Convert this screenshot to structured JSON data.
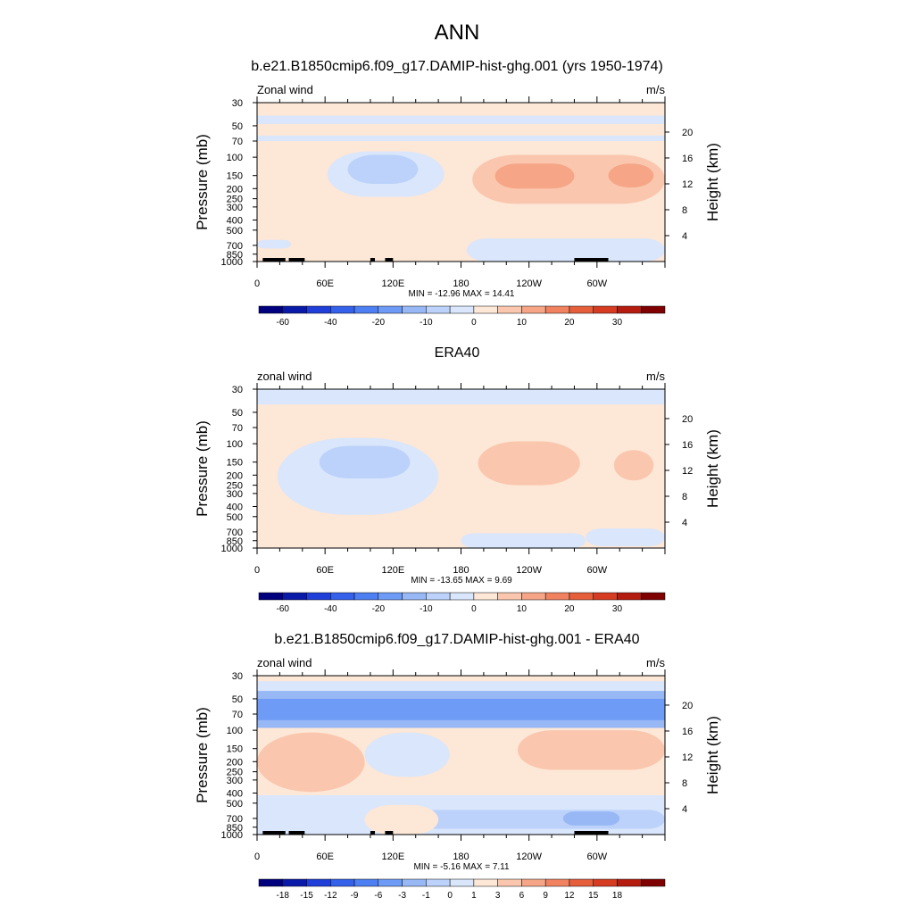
{
  "page_title": "ANN",
  "chart_data": [
    {
      "type": "heatmap",
      "title": "b.e21.B1850cmip6.f09_g17.DAMIP-hist-ghg.001 (yrs 1950-1974)",
      "variable_label": "Zonal wind",
      "units_label": "m/s",
      "xlabel": "",
      "ylabel_left": "Pressure (mb)",
      "ylabel_right": "Height (km)",
      "x_ticks": [
        "0",
        "60E",
        "120E",
        "180",
        "120W",
        "60W"
      ],
      "x_range_deg": [
        0,
        360
      ],
      "y_ticks_pressure": [
        "30",
        "50",
        "70",
        "100",
        "150",
        "200",
        "250",
        "300",
        "400",
        "500",
        "700",
        "850",
        "1000"
      ],
      "y_ticks_height": [
        "20",
        "16",
        "12",
        "8",
        "4"
      ],
      "y_scale": "log",
      "stats": "MIN = -12.96  MAX =  14.41",
      "min": -12.96,
      "max": 14.41,
      "colorbar": {
        "levels": [
          -70,
          -60,
          -50,
          -40,
          -30,
          -20,
          -15,
          -10,
          -5,
          0,
          5,
          10,
          15,
          20,
          25,
          30,
          35
        ],
        "labels": [
          "-60",
          "-40",
          "-20",
          "-10",
          "0",
          "10",
          "20",
          "30"
        ],
        "colors": [
          "#00007f",
          "#0a1aa8",
          "#1f3fd8",
          "#3460ea",
          "#4d7ff2",
          "#6e9bf6",
          "#97b8f5",
          "#bcd2fa",
          "#d9e6fb",
          "#fde7d7",
          "#fac7ae",
          "#f6a587",
          "#f08260",
          "#e65f3b",
          "#d63c21",
          "#b51c10",
          "#7f0000"
        ]
      },
      "regions": [
        {
          "shape": "band",
          "lon": [
            0,
            360
          ],
          "p": [
            48,
            40
          ],
          "level": "-5..0"
        },
        {
          "shape": "band",
          "lon": [
            0,
            360
          ],
          "p": [
            70,
            62
          ],
          "level": "-5..0"
        },
        {
          "shape": "blob",
          "lon": [
            62,
            165
          ],
          "p": [
            88,
            240
          ],
          "level": "-5..0"
        },
        {
          "shape": "blob",
          "lon": [
            80,
            142
          ],
          "p": [
            95,
            180
          ],
          "level": "-10..-5"
        },
        {
          "shape": "blob",
          "lon": [
            175,
            360
          ],
          "p": [
            85,
            390
          ],
          "level": "0..5"
        },
        {
          "shape": "blob",
          "lon": [
            190,
            360
          ],
          "p": [
            95,
            280
          ],
          "level": "5..10"
        },
        {
          "shape": "blob",
          "lon": [
            210,
            280
          ],
          "p": [
            115,
            200
          ],
          "level": "10..15"
        },
        {
          "shape": "blob",
          "lon": [
            310,
            350
          ],
          "p": [
            115,
            195
          ],
          "level": "10..15"
        },
        {
          "shape": "blob",
          "lon": [
            35,
            150
          ],
          "p": [
            480,
            1000
          ],
          "level": "0..5"
        },
        {
          "shape": "blob",
          "lon": [
            185,
            360
          ],
          "p": [
            600,
            1000
          ],
          "level": "-5..0"
        },
        {
          "shape": "blob",
          "lon": [
            0,
            30
          ],
          "p": [
            620,
            750
          ],
          "level": "-5..0"
        },
        {
          "shape": "blob",
          "lon": [
            33,
            62
          ],
          "p": [
            175,
            330
          ],
          "level": "0..5"
        }
      ]
    },
    {
      "type": "heatmap",
      "title": "ERA40",
      "variable_label": "zonal wind",
      "units_label": "m/s",
      "xlabel": "",
      "ylabel_left": "Pressure (mb)",
      "ylabel_right": "Height (km)",
      "x_ticks": [
        "0",
        "60E",
        "120E",
        "180",
        "120W",
        "60W"
      ],
      "x_range_deg": [
        0,
        360
      ],
      "y_ticks_pressure": [
        "30",
        "50",
        "70",
        "100",
        "150",
        "200",
        "250",
        "300",
        "400",
        "500",
        "700",
        "850",
        "1000"
      ],
      "y_ticks_height": [
        "20",
        "16",
        "12",
        "8",
        "4"
      ],
      "y_scale": "log",
      "stats": "MIN = -13.65  MAX =   9.69",
      "min": -13.65,
      "max": 9.69,
      "colorbar": {
        "levels": [
          -70,
          -60,
          -50,
          -40,
          -30,
          -20,
          -15,
          -10,
          -5,
          0,
          5,
          10,
          15,
          20,
          25,
          30,
          35
        ],
        "labels": [
          "-60",
          "-40",
          "-20",
          "-10",
          "0",
          "10",
          "20",
          "30"
        ],
        "colors": [
          "#00007f",
          "#0a1aa8",
          "#1f3fd8",
          "#3460ea",
          "#4d7ff2",
          "#6e9bf6",
          "#97b8f5",
          "#bcd2fa",
          "#d9e6fb",
          "#fde7d7",
          "#fac7ae",
          "#f6a587",
          "#f08260",
          "#e65f3b",
          "#d63c21",
          "#b51c10",
          "#7f0000"
        ]
      },
      "regions": [
        {
          "shape": "band",
          "lon": [
            0,
            360
          ],
          "p": [
            30,
            42
          ],
          "level": "-5..0"
        },
        {
          "shape": "blob",
          "lon": [
            18,
            160
          ],
          "p": [
            88,
            480
          ],
          "level": "-5..0"
        },
        {
          "shape": "blob",
          "lon": [
            55,
            135
          ],
          "p": [
            105,
            215
          ],
          "level": "-10..-5"
        },
        {
          "shape": "blob",
          "lon": [
            185,
            360
          ],
          "p": [
            78,
            440
          ],
          "level": "0..5"
        },
        {
          "shape": "blob",
          "lon": [
            195,
            285
          ],
          "p": [
            95,
            250
          ],
          "level": "5..10"
        },
        {
          "shape": "blob",
          "lon": [
            315,
            350
          ],
          "p": [
            115,
            225
          ],
          "level": "5..10"
        },
        {
          "shape": "blob",
          "lon": [
            30,
            130
          ],
          "p": [
            580,
            1000
          ],
          "level": "0..5"
        },
        {
          "shape": "blob",
          "lon": [
            180,
            290
          ],
          "p": [
            720,
            1000
          ],
          "level": "-5..0"
        },
        {
          "shape": "blob",
          "lon": [
            290,
            360
          ],
          "p": [
            650,
            960
          ],
          "level": "-5..0"
        }
      ]
    },
    {
      "type": "heatmap",
      "title": "b.e21.B1850cmip6.f09_g17.DAMIP-hist-ghg.001 - ERA40",
      "variable_label": "zonal wind",
      "units_label": "m/s",
      "xlabel": "",
      "ylabel_left": "Pressure (mb)",
      "ylabel_right": "Height (km)",
      "x_ticks": [
        "0",
        "60E",
        "120E",
        "180",
        "120W",
        "60W"
      ],
      "x_range_deg": [
        0,
        360
      ],
      "y_ticks_pressure": [
        "30",
        "50",
        "70",
        "100",
        "150",
        "200",
        "250",
        "300",
        "400",
        "500",
        "700",
        "850",
        "1000"
      ],
      "y_ticks_height": [
        "20",
        "16",
        "12",
        "8",
        "4"
      ],
      "y_scale": "log",
      "stats": "MIN =  -5.16  MAX =   7.11",
      "min": -5.16,
      "max": 7.11,
      "colorbar": {
        "levels": [
          -21,
          -18,
          -15,
          -12,
          -9,
          -6,
          -3,
          -1,
          0,
          1,
          3,
          6,
          9,
          12,
          15,
          18,
          21
        ],
        "labels": [
          "-18",
          "-15",
          "-12",
          "-9",
          "-6",
          "-3",
          "-1",
          "0",
          "1",
          "3",
          "6",
          "9",
          "12",
          "15",
          "18"
        ],
        "colors": [
          "#00007f",
          "#0a1aa8",
          "#1f3fd8",
          "#3460ea",
          "#4d7ff2",
          "#6e9bf6",
          "#97b8f5",
          "#bcd2fa",
          "#d9e6fb",
          "#fde7d7",
          "#fac7ae",
          "#f6a587",
          "#f08260",
          "#e65f3b",
          "#d63c21",
          "#b51c10",
          "#7f0000"
        ]
      },
      "regions": [
        {
          "shape": "band",
          "lon": [
            0,
            360
          ],
          "p": [
            30,
            34
          ],
          "level": "1..3"
        },
        {
          "shape": "band",
          "lon": [
            0,
            360
          ],
          "p": [
            34,
            42
          ],
          "level": "0..1"
        },
        {
          "shape": "band",
          "lon": [
            0,
            360
          ],
          "p": [
            42,
            95
          ],
          "level": "-3..-1"
        },
        {
          "shape": "band",
          "lon": [
            0,
            360
          ],
          "p": [
            50,
            80
          ],
          "level": "-6..-3"
        },
        {
          "shape": "band",
          "lon": [
            0,
            360
          ],
          "p": [
            95,
            420
          ],
          "level": "1..3"
        },
        {
          "shape": "blob",
          "lon": [
            0,
            95
          ],
          "p": [
            105,
            390
          ],
          "level": "3..6"
        },
        {
          "shape": "blob",
          "lon": [
            230,
            360
          ],
          "p": [
            100,
            240
          ],
          "level": "3..6"
        },
        {
          "shape": "blob",
          "lon": [
            95,
            170
          ],
          "p": [
            105,
            280
          ],
          "level": "0..1"
        },
        {
          "shape": "band",
          "lon": [
            0,
            360
          ],
          "p": [
            420,
            1000
          ],
          "level": "0..1"
        },
        {
          "shape": "blob",
          "lon": [
            130,
            360
          ],
          "p": [
            580,
            880
          ],
          "level": "-1..0"
        },
        {
          "shape": "blob",
          "lon": [
            270,
            320
          ],
          "p": [
            600,
            820
          ],
          "level": "-3..-1"
        },
        {
          "shape": "blob",
          "lon": [
            95,
            160
          ],
          "p": [
            520,
            1000
          ],
          "level": "1..3"
        }
      ]
    }
  ]
}
